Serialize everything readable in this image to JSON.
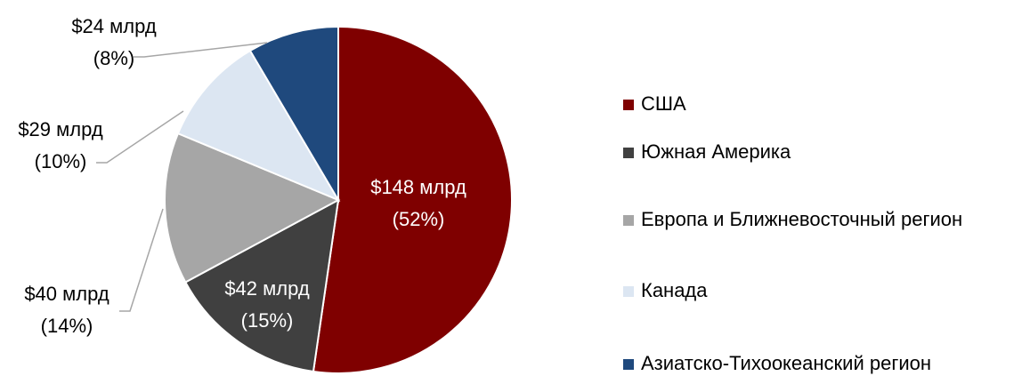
{
  "chart_data": {
    "type": "pie",
    "categories": [
      "США",
      "Южная Америка",
      "Европа и Ближневосточный регион",
      "Канада",
      "Азиатско-Тихоокеанский регион"
    ],
    "values": [
      148,
      42,
      40,
      29,
      24
    ],
    "value_labels": [
      "$148 млрд",
      "$42 млрд",
      "$40 млрд",
      "$29 млрд",
      "$24 млрд"
    ],
    "percents": [
      52,
      15,
      14,
      10,
      8
    ],
    "percent_labels": [
      "(52%)",
      "(15%)",
      "(14%)",
      "(10%)",
      "(8%)"
    ],
    "colors": [
      "#7f0000",
      "#404040",
      "#a6a6a6",
      "#dce6f2",
      "#1f497d"
    ],
    "legend": "right"
  }
}
